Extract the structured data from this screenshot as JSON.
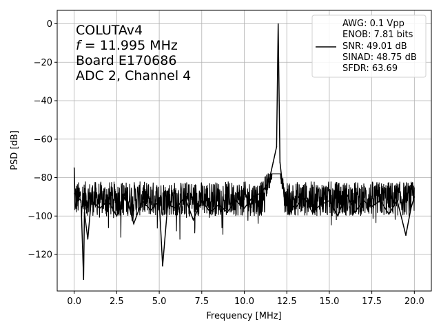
{
  "chart_data": {
    "type": "line",
    "xlabel": "Frequency [MHz]",
    "ylabel": "PSD [dB]",
    "xlim": [
      -1.0,
      21.0
    ],
    "ylim": [
      -139.0,
      7.0
    ],
    "x_ticks": [
      0.0,
      2.5,
      5.0,
      7.5,
      10.0,
      12.5,
      15.0,
      17.5,
      20.0
    ],
    "x_tick_labels": [
      "0.0",
      "2.5",
      "5.0",
      "7.5",
      "10.0",
      "12.5",
      "15.0",
      "17.5",
      "20.0"
    ],
    "y_ticks": [
      0,
      -20,
      -40,
      -60,
      -80,
      -100,
      -120
    ],
    "y_tick_labels": [
      "0",
      "−20",
      "−40",
      "−60",
      "−80",
      "−100",
      "−120"
    ],
    "grid": true,
    "line_color": "#000000",
    "annotation": {
      "line1": "COLUTAv4",
      "line2_italic": "f",
      "line2_rest": " = 11.995 MHz",
      "line3": "Board E170686",
      "line4": "ADC 2, Channel 4"
    },
    "legend": {
      "position": "top-right",
      "entries": [
        "AWG: 0.1 Vpp",
        "ENOB: 7.81 bits",
        "SNR: 49.01 dB",
        "SINAD: 48.75 dB",
        "SFDR: 63.69"
      ]
    },
    "series": [
      {
        "x": [
          0.0,
          0.05,
          0.1,
          0.2,
          0.4,
          0.55,
          0.6,
          0.8,
          1.0,
          1.5,
          2.0,
          2.5,
          3.0,
          3.5,
          4.0,
          4.5,
          5.0,
          5.2,
          5.5,
          6.0,
          6.5,
          7.0,
          7.5,
          8.0,
          8.5,
          9.0,
          9.5,
          10.0,
          10.5,
          11.0,
          11.3,
          11.5,
          11.7,
          11.9,
          11.995,
          12.1,
          12.2,
          12.3,
          12.5,
          13.0,
          13.5,
          14.0,
          14.5,
          15.0,
          15.5,
          16.0,
          16.5,
          17.0,
          17.5,
          18.0,
          18.5,
          19.0,
          19.5,
          19.8,
          20.0
        ],
        "y": [
          -75,
          -93,
          -96,
          -90,
          -92,
          -133,
          -98,
          -112,
          -92,
          -96,
          -92,
          -100,
          -88,
          -104,
          -92,
          -97,
          -92,
          -126,
          -94,
          -96,
          -90,
          -102,
          -92,
          -98,
          -94,
          -98,
          -92,
          -96,
          -90,
          -88,
          -84,
          -80,
          -72,
          -64,
          0,
          -72,
          -80,
          -86,
          -92,
          -96,
          -90,
          -98,
          -94,
          -92,
          -100,
          -88,
          -98,
          -92,
          -95,
          -92,
          -99,
          -92,
          -110,
          -96,
          -90
        ]
      }
    ]
  }
}
